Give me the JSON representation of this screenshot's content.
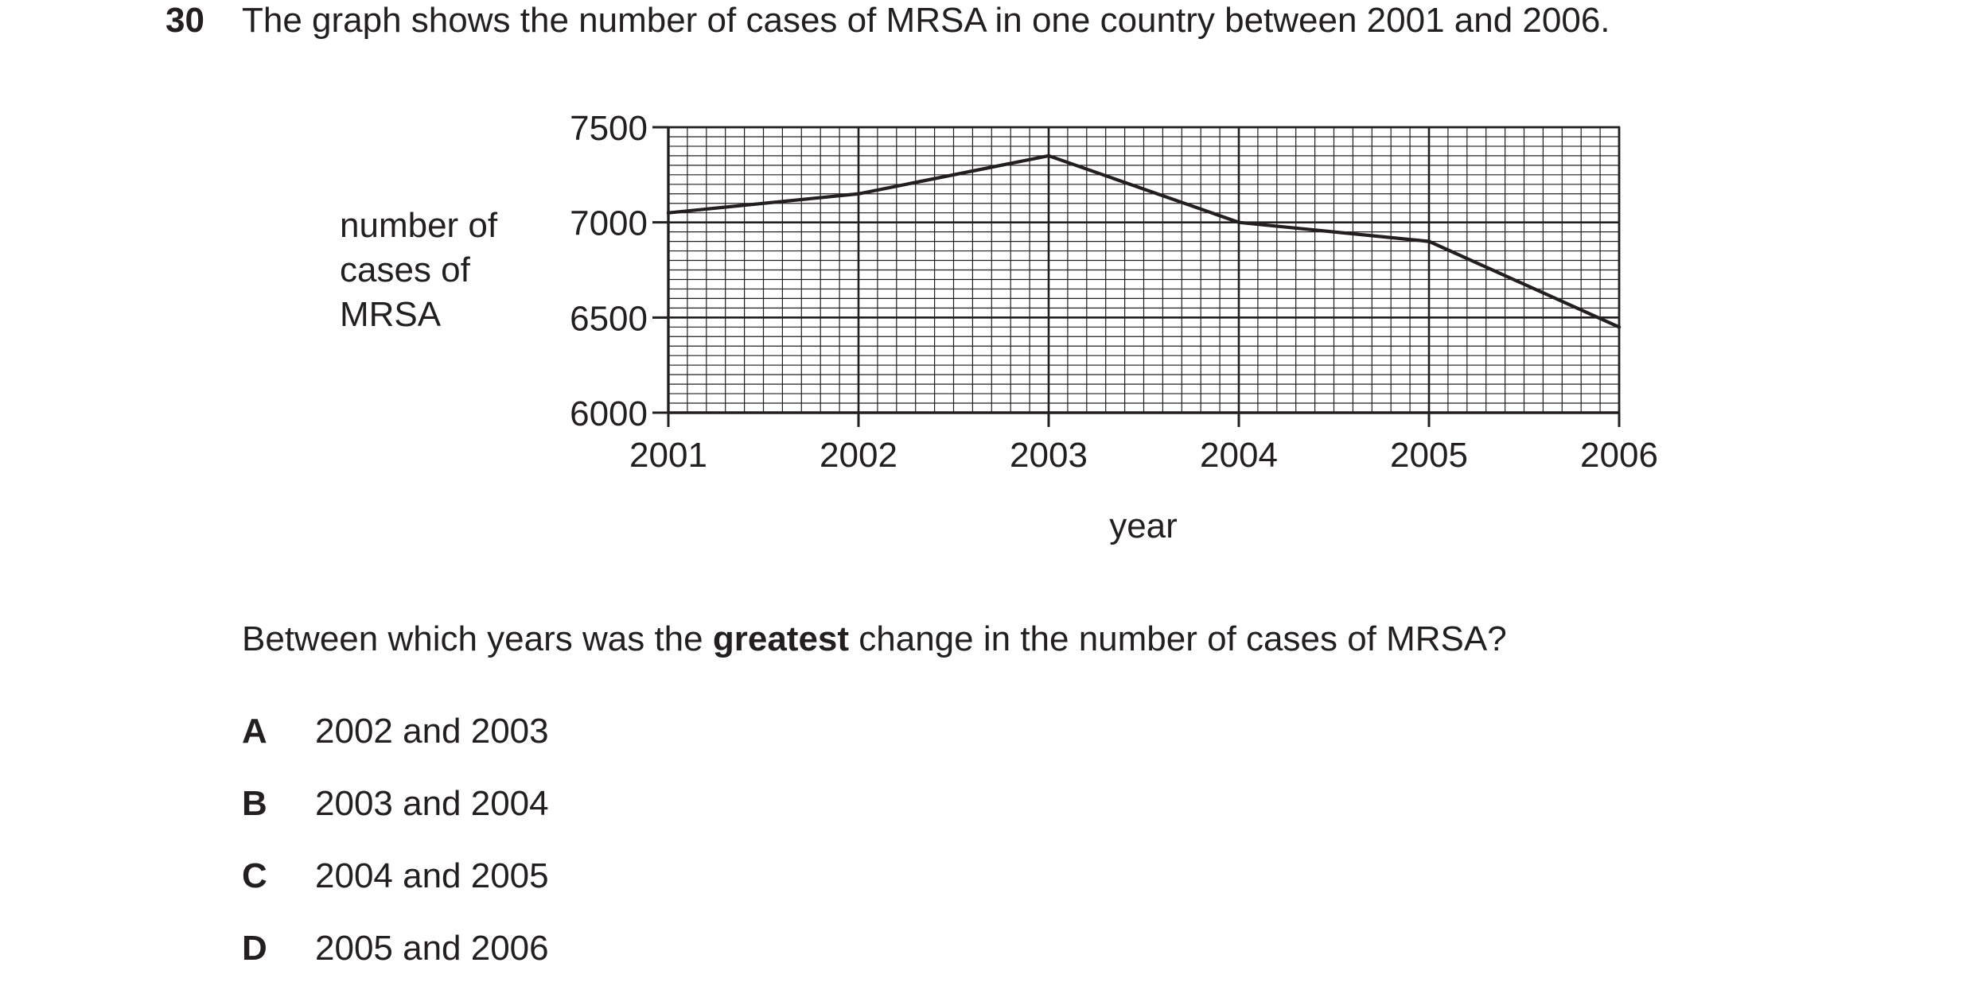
{
  "question": {
    "number": "30",
    "text": "The graph shows the number of cases of MRSA in one country between 2001 and 2006."
  },
  "chart_data": {
    "type": "line",
    "title": "",
    "xlabel": "year",
    "ylabel_lines": [
      "number of",
      "cases of",
      "MRSA"
    ],
    "x": [
      2001,
      2002,
      2003,
      2004,
      2005,
      2006
    ],
    "x_tick_labels": [
      "2001",
      "2002",
      "2003",
      "2004",
      "2005",
      "2006"
    ],
    "y_tick_values": [
      6000,
      6500,
      7000,
      7500
    ],
    "y_tick_labels": [
      "6000",
      "6500",
      "7000",
      "7500"
    ],
    "xlim": [
      2001,
      2006
    ],
    "ylim": [
      6000,
      7500
    ],
    "grid": true,
    "series": [
      {
        "values": [
          7050,
          7150,
          7350,
          7000,
          6900,
          6450
        ]
      }
    ]
  },
  "prompt": {
    "before": "Between which years was the ",
    "emphasis": "greatest",
    "after": " change in the number of cases of MRSA?"
  },
  "options": [
    {
      "letter": "A",
      "text": "2002 and 2003"
    },
    {
      "letter": "B",
      "text": "2003 and 2004"
    },
    {
      "letter": "C",
      "text": "2004 and 2005"
    },
    {
      "letter": "D",
      "text": "2005 and 2006"
    }
  ]
}
